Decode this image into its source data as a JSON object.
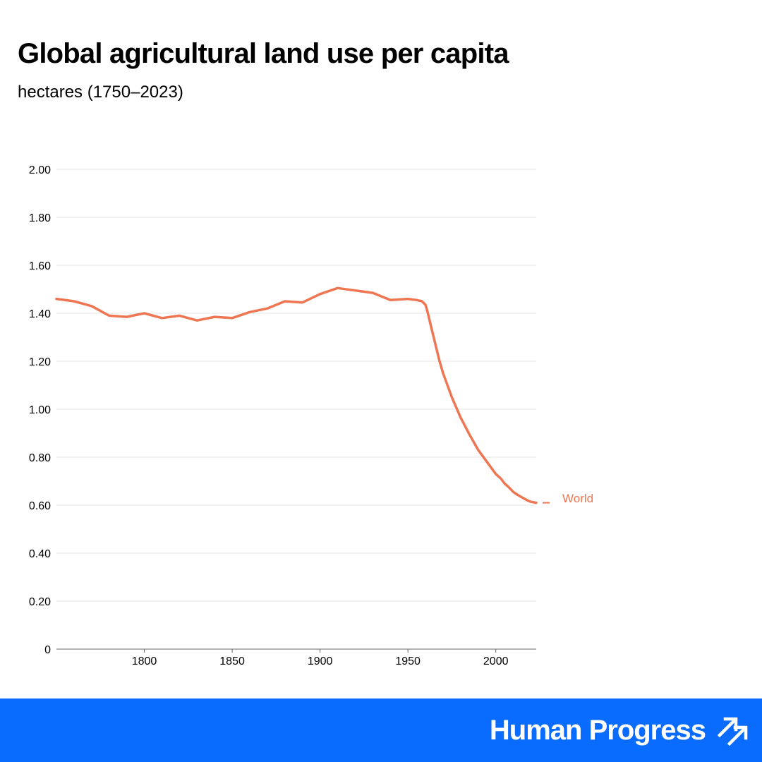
{
  "chart_data": {
    "type": "line",
    "title": "Global agricultural land use per capita",
    "subtitle": "hectares (1750–2023)",
    "xlabel": "",
    "ylabel": "",
    "xlim": [
      1750,
      2023
    ],
    "ylim": [
      0,
      2.0
    ],
    "x_ticks": [
      1800,
      1850,
      1900,
      1950,
      2000
    ],
    "x_tick_labels": [
      "1800",
      "1850",
      "1900",
      "1950",
      "2000"
    ],
    "y_ticks": [
      0,
      0.2,
      0.4,
      0.6,
      0.8,
      1.0,
      1.2,
      1.4,
      1.6,
      1.8,
      2.0
    ],
    "y_tick_labels": [
      "0",
      "0.20",
      "0.40",
      "0.60",
      "0.80",
      "1.00",
      "1.20",
      "1.40",
      "1.60",
      "1.80",
      "2.00"
    ],
    "grid": "horizontal",
    "legend": "end-of-line label",
    "series": [
      {
        "name": "World",
        "color": "#ee7652",
        "x": [
          1750,
          1760,
          1770,
          1780,
          1790,
          1800,
          1810,
          1820,
          1830,
          1840,
          1850,
          1860,
          1870,
          1880,
          1890,
          1900,
          1910,
          1920,
          1930,
          1940,
          1950,
          1955,
          1958,
          1960,
          1961,
          1962,
          1963,
          1965,
          1968,
          1970,
          1975,
          1980,
          1985,
          1990,
          1995,
          2000,
          2003,
          2005,
          2007,
          2010,
          2012,
          2015,
          2018,
          2020,
          2023
        ],
        "values": [
          1.46,
          1.45,
          1.43,
          1.39,
          1.385,
          1.4,
          1.38,
          1.39,
          1.37,
          1.385,
          1.38,
          1.405,
          1.42,
          1.45,
          1.445,
          1.48,
          1.505,
          1.495,
          1.485,
          1.455,
          1.46,
          1.455,
          1.45,
          1.435,
          1.41,
          1.38,
          1.35,
          1.29,
          1.2,
          1.15,
          1.05,
          0.965,
          0.895,
          0.83,
          0.78,
          0.73,
          0.71,
          0.69,
          0.678,
          0.655,
          0.645,
          0.632,
          0.62,
          0.614,
          0.61
        ]
      }
    ]
  },
  "brand": {
    "name": "Human Progress",
    "logo_icon": "double-up-right-arrows",
    "color": "#0a6cff"
  }
}
